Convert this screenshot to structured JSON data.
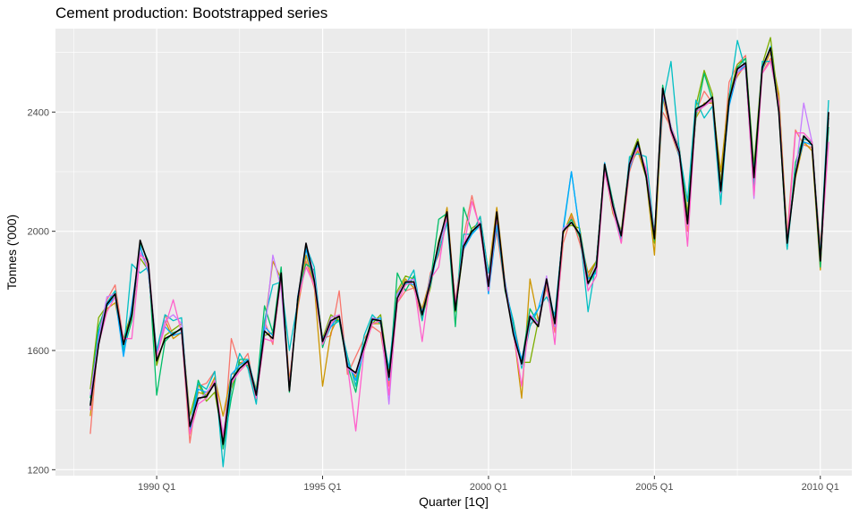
{
  "chart_data": {
    "type": "line",
    "title": "Cement production: Bootstrapped series",
    "xlabel": "Quarter [1Q]",
    "ylabel": "Tonnes ('000)",
    "x_ticks": [
      {
        "value": 1990,
        "label": "1990 Q1"
      },
      {
        "value": 1995,
        "label": "1995 Q1"
      },
      {
        "value": 2000,
        "label": "2000 Q1"
      },
      {
        "value": 2005,
        "label": "2005 Q1"
      },
      {
        "value": 2010,
        "label": "2010 Q1"
      }
    ],
    "y_ticks": [
      {
        "value": 1200,
        "label": "1200"
      },
      {
        "value": 1600,
        "label": "1600"
      },
      {
        "value": 2000,
        "label": "2000"
      },
      {
        "value": 2400,
        "label": "2400"
      }
    ],
    "xlim": [
      1986.95,
      2010.95
    ],
    "ylim": [
      1180,
      2680
    ],
    "grid": true,
    "x_start": 1988,
    "x_step": 0.25,
    "colors": [
      "#f8766d",
      "#cd9600",
      "#7cae00",
      "#00be67",
      "#00bfc4",
      "#00a9ff",
      "#c77cff",
      "#ff61cc",
      "#00c19a",
      "#b79f00"
    ],
    "series_original": {
      "color": "#000000",
      "values": [
        1415,
        1620,
        1755,
        1790,
        1620,
        1720,
        1970,
        1890,
        1565,
        1640,
        1655,
        1675,
        1345,
        1440,
        1445,
        1490,
        1285,
        1500,
        1540,
        1565,
        1450,
        1665,
        1640,
        1860,
        1465,
        1770,
        1960,
        1835,
        1630,
        1700,
        1715,
        1545,
        1525,
        1615,
        1705,
        1700,
        1510,
        1775,
        1830,
        1830,
        1720,
        1830,
        1960,
        2065,
        1735,
        1950,
        2000,
        2025,
        1815,
        2065,
        1810,
        1655,
        1555,
        1715,
        1680,
        1840,
        1690,
        2000,
        2030,
        1990,
        1825,
        1880,
        2225,
        2085,
        1985,
        2225,
        2300,
        2185,
        1975,
        2480,
        2340,
        2265,
        2025,
        2410,
        2425,
        2450,
        2135,
        2440,
        2545,
        2565,
        2180,
        2550,
        2615,
        2400,
        1960,
        2190,
        2320,
        2290,
        1900,
        2400
      ]
    },
    "series": [
      {
        "values": [
          1320,
          1655,
          1770,
          1820,
          1635,
          1705,
          1930,
          1880,
          1590,
          1720,
          1650,
          1660,
          1290,
          1480,
          1490,
          1530,
          1270,
          1640,
          1550,
          1590,
          1430,
          1700,
          1620,
          1850,
          1500,
          1740,
          1900,
          1810,
          1640,
          1650,
          1800,
          1520,
          1580,
          1640,
          1680,
          1660,
          1480,
          1760,
          1800,
          1810,
          1700,
          1860,
          1920,
          2040,
          1760,
          1980,
          2120,
          2000,
          1830,
          2000,
          1800,
          1700,
          1560,
          1690,
          1700,
          1810,
          1660,
          1960,
          2050,
          1960,
          1850,
          1900,
          2200,
          2100,
          1960,
          2200,
          2290,
          2200,
          1990,
          2400,
          2350,
          2280,
          2000,
          2400,
          2470,
          2430,
          2160,
          2500,
          2560,
          2590,
          2200,
          2530,
          2580,
          2450,
          1990,
          2340,
          2290,
          2280,
          1950,
          2380
        ]
      },
      {
        "values": [
          1380,
          1640,
          1740,
          1760,
          1620,
          1740,
          1950,
          1860,
          1580,
          1700,
          1640,
          1660,
          1350,
          1460,
          1450,
          1510,
          1380,
          1520,
          1530,
          1560,
          1470,
          1680,
          1900,
          1840,
          1490,
          1750,
          1920,
          1820,
          1480,
          1660,
          1720,
          1560,
          1510,
          1600,
          1690,
          1690,
          1520,
          1790,
          1840,
          1810,
          1740,
          1840,
          1940,
          2080,
          1760,
          1960,
          1990,
          2050,
          1860,
          2080,
          1830,
          1670,
          1440,
          1840,
          1700,
          1830,
          1700,
          1990,
          2060,
          1980,
          1860,
          1900,
          2210,
          2060,
          1990,
          2220,
          2270,
          2180,
          1920,
          2450,
          2330,
          2250,
          2040,
          2380,
          2430,
          2430,
          2200,
          2460,
          2520,
          2560,
          2190,
          2540,
          2600,
          2460,
          1970,
          2180,
          2300,
          2270,
          1870,
          2380
        ]
      },
      {
        "values": [
          1470,
          1710,
          1750,
          1780,
          1640,
          1730,
          1910,
          1870,
          1550,
          1650,
          1670,
          1690,
          1380,
          1490,
          1430,
          1460,
          1300,
          1470,
          1560,
          1550,
          1440,
          1650,
          1660,
          1840,
          1480,
          1760,
          1950,
          1850,
          1640,
          1720,
          1700,
          1580,
          1480,
          1620,
          1690,
          1720,
          1520,
          1800,
          1850,
          1840,
          1710,
          1810,
          1970,
          2050,
          1730,
          1940,
          2010,
          2030,
          1800,
          2040,
          1820,
          1680,
          1560,
          1560,
          1700,
          1820,
          1700,
          2010,
          2020,
          2010,
          1840,
          1900,
          2210,
          2080,
          2000,
          2240,
          2310,
          2190,
          1960,
          2470,
          2350,
          2270,
          2060,
          2420,
          2540,
          2460,
          2160,
          2450,
          2560,
          2580,
          2220,
          2560,
          2650,
          2420,
          1980,
          2200,
          2310,
          2300,
          1910,
          2350
        ]
      },
      {
        "values": [
          1440,
          1680,
          1760,
          1800,
          1600,
          1700,
          1960,
          1900,
          1450,
          1630,
          1660,
          1670,
          1340,
          1500,
          1440,
          1500,
          1270,
          1440,
          1570,
          1570,
          1460,
          1750,
          1660,
          1880,
          1460,
          1780,
          1890,
          1870,
          1610,
          1700,
          1700,
          1550,
          1460,
          1620,
          1710,
          1690,
          1500,
          1860,
          1800,
          1850,
          1720,
          1830,
          2040,
          2060,
          1680,
          2080,
          2000,
          2020,
          1810,
          2060,
          1800,
          1690,
          1560,
          1740,
          1690,
          1830,
          1680,
          2000,
          2040,
          1980,
          1820,
          1870,
          2230,
          2100,
          1980,
          2230,
          2300,
          2180,
          1970,
          2490,
          2340,
          2280,
          2030,
          2380,
          2530,
          2440,
          2140,
          2430,
          2550,
          2580,
          2200,
          2550,
          2610,
          2400,
          1940,
          2230,
          2320,
          2290,
          1880,
          2350
        ]
      },
      {
        "values": [
          1420,
          1630,
          1760,
          1800,
          1590,
          1890,
          1860,
          1880,
          1600,
          1720,
          1700,
          1710,
          1340,
          1490,
          1470,
          1530,
          1210,
          1480,
          1590,
          1540,
          1420,
          1700,
          1820,
          1830,
          1600,
          1760,
          1950,
          1880,
          1620,
          1680,
          1700,
          1580,
          1480,
          1650,
          1720,
          1690,
          1540,
          1790,
          1820,
          1870,
          1700,
          1850,
          1930,
          2030,
          1740,
          1990,
          1990,
          2050,
          1860,
          2020,
          1810,
          1700,
          1540,
          1680,
          1740,
          1780,
          1720,
          2000,
          2200,
          2000,
          1730,
          1900,
          2220,
          2080,
          1970,
          2250,
          2260,
          2250,
          1990,
          2430,
          2570,
          2270,
          2100,
          2440,
          2380,
          2420,
          2090,
          2450,
          2640,
          2540,
          2150,
          2570,
          2570,
          2430,
          1940,
          2200,
          2310,
          2300,
          1920,
          2440
        ]
      },
      {
        "values": [
          1400,
          1660,
          1750,
          1780,
          1580,
          1750,
          1950,
          1860,
          1590,
          1680,
          1650,
          1660,
          1330,
          1470,
          1460,
          1490,
          1300,
          1520,
          1550,
          1570,
          1460,
          1680,
          1650,
          1850,
          1470,
          1780,
          1940,
          1830,
          1640,
          1680,
          1720,
          1560,
          1500,
          1600,
          1700,
          1710,
          1500,
          1780,
          1830,
          1820,
          1730,
          1820,
          1950,
          2050,
          1750,
          1940,
          1990,
          2020,
          1790,
          2020,
          1830,
          1670,
          1570,
          1700,
          1740,
          1840,
          1700,
          2010,
          2200,
          2000,
          1840,
          1860,
          2230,
          2090,
          1990,
          2210,
          2290,
          2190,
          1980,
          2460,
          2350,
          2250,
          2030,
          2400,
          2420,
          2440,
          2130,
          2420,
          2530,
          2560,
          2190,
          2540,
          2620,
          2410,
          1960,
          2200,
          2300,
          2290,
          1910,
          2380
        ]
      },
      {
        "values": [
          1450,
          1640,
          1780,
          1790,
          1620,
          1720,
          1930,
          1870,
          1580,
          1700,
          1720,
          1690,
          1360,
          1430,
          1460,
          1490,
          1320,
          1490,
          1540,
          1560,
          1440,
          1650,
          1920,
          1810,
          1470,
          1770,
          1960,
          1850,
          1630,
          1710,
          1720,
          1540,
          1520,
          1600,
          1710,
          1700,
          1420,
          1790,
          1830,
          1840,
          1720,
          1840,
          1950,
          2060,
          1740,
          1960,
          2000,
          2030,
          1830,
          2060,
          1820,
          1660,
          1550,
          1720,
          1690,
          1850,
          1680,
          2010,
          2030,
          1990,
          1820,
          1890,
          2220,
          2090,
          1990,
          2230,
          2300,
          2200,
          1980,
          2480,
          2350,
          2270,
          2020,
          2410,
          2420,
          2450,
          2140,
          2440,
          2540,
          2560,
          2110,
          2550,
          2610,
          2410,
          1970,
          2190,
          2430,
          2300,
          1900,
          2400
        ]
      },
      {
        "values": [
          1400,
          1620,
          1730,
          1780,
          1640,
          1640,
          1920,
          1900,
          1580,
          1680,
          1770,
          1660,
          1320,
          1420,
          1440,
          1500,
          1310,
          1490,
          1530,
          1560,
          1440,
          1640,
          1630,
          1840,
          1480,
          1770,
          1880,
          1820,
          1620,
          1690,
          1720,
          1550,
          1330,
          1600,
          1690,
          1700,
          1450,
          1760,
          1820,
          1830,
          1630,
          1840,
          1880,
          2060,
          1760,
          1940,
          2100,
          2010,
          1800,
          2050,
          1820,
          1660,
          1480,
          1720,
          1680,
          1830,
          1620,
          2000,
          2030,
          1990,
          1800,
          1850,
          2200,
          2070,
          1960,
          2220,
          2280,
          2210,
          1980,
          2470,
          2330,
          2260,
          1950,
          2400,
          2420,
          2440,
          2130,
          2440,
          2530,
          2550,
          2120,
          2530,
          2570,
          2430,
          1960,
          2330,
          2330,
          2300,
          1900,
          2300
        ]
      }
    ]
  }
}
